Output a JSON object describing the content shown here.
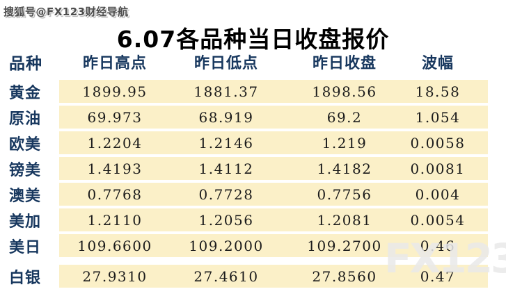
{
  "watermarks": {
    "sohu": "搜狐号@FX123财经导航",
    "logo": "FX123"
  },
  "title": "6.07各品种当日收盘报价",
  "table": {
    "header": [
      "品种",
      "昨日高点",
      "昨日低点",
      "昨日收盘",
      "波幅"
    ],
    "rows": [
      [
        "黄金",
        "1899.95",
        "1881.37",
        "1898.56",
        "18.58"
      ],
      [
        "原油",
        "69.973",
        "68.919",
        "69.2",
        "1.054"
      ],
      [
        "欧美",
        "1.2204",
        "1.2146",
        "1.219",
        "0.0058"
      ],
      [
        "镑美",
        "1.4193",
        "1.4112",
        "1.4182",
        "0.0081"
      ],
      [
        "澳美",
        "0.7768",
        "0.7728",
        "0.7756",
        "0.004"
      ],
      [
        "美加",
        "1.2110",
        "1.2056",
        "1.2081",
        "0.0054"
      ],
      [
        "美日",
        "109.6600",
        "109.2000",
        "109.2700",
        "0.46"
      ],
      [
        "白银",
        "27.9310",
        "27.4610",
        "27.8560",
        "0.47"
      ]
    ]
  },
  "colors": {
    "row_background": "#FBF0C8",
    "header_text": "#17375E",
    "number_text": "#1B1B1B",
    "title_text": "#000000"
  },
  "chart_data": {
    "type": "table",
    "title": "6.07各品种当日收盘报价",
    "columns": [
      "品种",
      "昨日高点",
      "昨日低点",
      "昨日收盘",
      "波幅"
    ],
    "rows": [
      {
        "品种": "黄金",
        "昨日高点": 1899.95,
        "昨日低点": 1881.37,
        "昨日收盘": 1898.56,
        "波幅": 18.58
      },
      {
        "品种": "原油",
        "昨日高点": 69.973,
        "昨日低点": 68.919,
        "昨日收盘": 69.2,
        "波幅": 1.054
      },
      {
        "品种": "欧美",
        "昨日高点": 1.2204,
        "昨日低点": 1.2146,
        "昨日收盘": 1.219,
        "波幅": 0.0058
      },
      {
        "品种": "镑美",
        "昨日高点": 1.4193,
        "昨日低点": 1.4112,
        "昨日收盘": 1.4182,
        "波幅": 0.0081
      },
      {
        "品种": "澳美",
        "昨日高点": 0.7768,
        "昨日低点": 0.7728,
        "昨日收盘": 0.7756,
        "波幅": 0.004
      },
      {
        "品种": "美加",
        "昨日高点": 1.211,
        "昨日低点": 1.2056,
        "昨日收盘": 1.2081,
        "波幅": 0.0054
      },
      {
        "品种": "美日",
        "昨日高点": 109.66,
        "昨日低点": 109.2,
        "昨日收盘": 109.27,
        "波幅": 0.46
      },
      {
        "品种": "白银",
        "昨日高点": 27.931,
        "昨日低点": 27.461,
        "昨日收盘": 27.856,
        "波幅": 0.47
      }
    ]
  }
}
